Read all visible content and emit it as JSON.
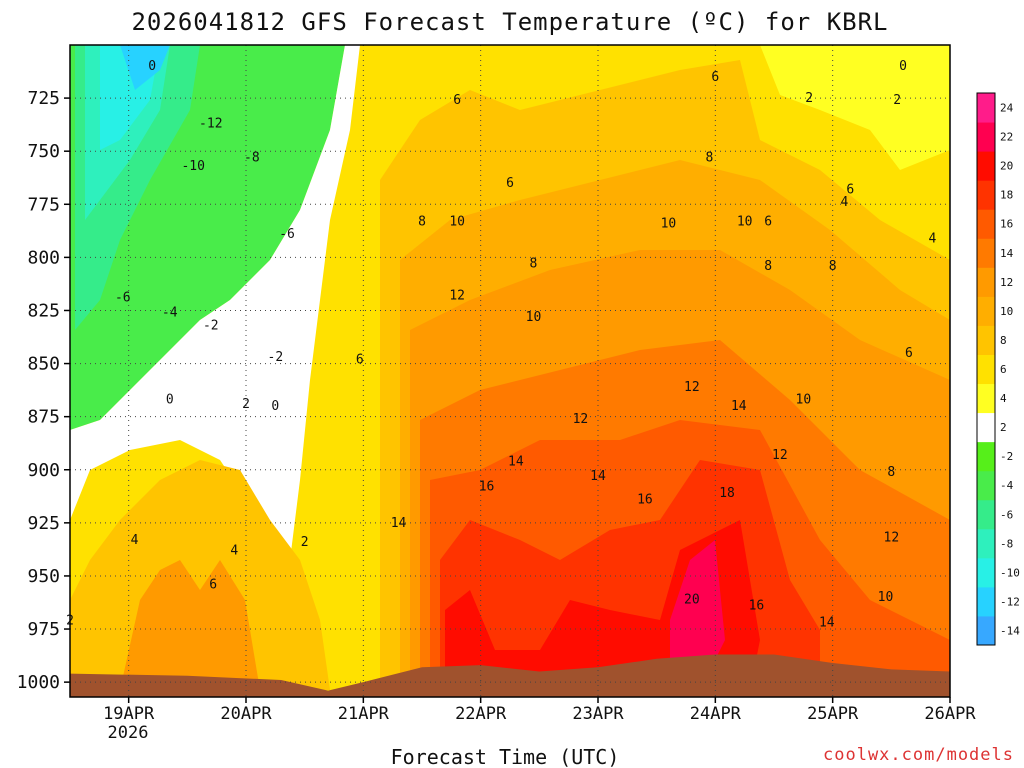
{
  "chart_data": {
    "type": "heatmap",
    "title": "2026041812 GFS Forecast Temperature (ºC) for KBRL",
    "xlabel": "Forecast Time (UTC)",
    "ylabel": "",
    "credit": "coolwx.com/models",
    "y_axis": {
      "inverted": true,
      "unit": "hPa",
      "ticks": [
        "725",
        "750",
        "775",
        "800",
        "825",
        "850",
        "875",
        "900",
        "925",
        "950",
        "975",
        "1000"
      ],
      "range": [
        700,
        1007
      ]
    },
    "x_axis": {
      "ticks": [
        "19APR",
        "20APR",
        "21APR",
        "22APR",
        "23APR",
        "24APR",
        "25APR",
        "26APR"
      ],
      "year_label": "2026",
      "range_days": [
        -0.5,
        7.0
      ]
    },
    "colorbar": {
      "levels": [
        "-14",
        "-12",
        "-10",
        "-8",
        "-6",
        "-4",
        "-2",
        "2",
        "4",
        "6",
        "8",
        "10",
        "12",
        "14",
        "16",
        "18",
        "20",
        "22",
        "24"
      ],
      "colors": [
        "#37a8ff",
        "#27d2ff",
        "#28f0e6",
        "#2ef0bd",
        "#35ec8a",
        "#49ec4a",
        "#56ef1a",
        "#ffffff",
        "#ffff22",
        "#ffe100",
        "#ffc400",
        "#ffae00",
        "#ff9a00",
        "#ff7a00",
        "#ff5a00",
        "#ff3300",
        "#ff0c00",
        "#ff0050",
        "#ff1c8a"
      ]
    },
    "contour_labels": [
      {
        "t": 0.2,
        "p": 710,
        "v": "0"
      },
      {
        "t": 0.7,
        "p": 737,
        "v": "-12"
      },
      {
        "t": 0.55,
        "p": 757,
        "v": "-10"
      },
      {
        "t": 1.05,
        "p": 753,
        "v": "-8"
      },
      {
        "t": 1.35,
        "p": 789,
        "v": "-6"
      },
      {
        "t": -0.05,
        "p": 819,
        "v": "-6"
      },
      {
        "t": 0.35,
        "p": 826,
        "v": "-4"
      },
      {
        "t": 0.7,
        "p": 832,
        "v": "-2"
      },
      {
        "t": 1.25,
        "p": 847,
        "v": "-2"
      },
      {
        "t": 0.35,
        "p": 867,
        "v": "0"
      },
      {
        "t": 1.25,
        "p": 870,
        "v": "0"
      },
      {
        "t": 1.0,
        "p": 869,
        "v": "2"
      },
      {
        "t": -0.5,
        "p": 971,
        "v": "2"
      },
      {
        "t": 0.05,
        "p": 933,
        "v": "4"
      },
      {
        "t": 0.9,
        "p": 938,
        "v": "4"
      },
      {
        "t": 0.72,
        "p": 954,
        "v": "6"
      },
      {
        "t": 1.5,
        "p": 934,
        "v": "2"
      },
      {
        "t": 1.97,
        "p": 848,
        "v": "6"
      },
      {
        "t": 2.8,
        "p": 726,
        "v": "6"
      },
      {
        "t": 3.25,
        "p": 765,
        "v": "6"
      },
      {
        "t": 2.5,
        "p": 783,
        "v": "8"
      },
      {
        "t": 2.8,
        "p": 783,
        "v": "10"
      },
      {
        "t": 2.3,
        "p": 925,
        "v": "14"
      },
      {
        "t": 2.8,
        "p": 818,
        "v": "12"
      },
      {
        "t": 3.45,
        "p": 803,
        "v": "8"
      },
      {
        "t": 3.45,
        "p": 828,
        "v": "10"
      },
      {
        "t": 3.3,
        "p": 896,
        "v": "14"
      },
      {
        "t": 3.05,
        "p": 908,
        "v": "16"
      },
      {
        "t": 3.85,
        "p": 876,
        "v": "12"
      },
      {
        "t": 4.0,
        "p": 903,
        "v": "14"
      },
      {
        "t": 4.6,
        "p": 784,
        "v": "10"
      },
      {
        "t": 4.8,
        "p": 861,
        "v": "12"
      },
      {
        "t": 5.0,
        "p": 715,
        "v": "6"
      },
      {
        "t": 4.95,
        "p": 753,
        "v": "8"
      },
      {
        "t": 5.25,
        "p": 783,
        "v": "10"
      },
      {
        "t": 5.45,
        "p": 783,
        "v": "6"
      },
      {
        "t": 5.45,
        "p": 804,
        "v": "8"
      },
      {
        "t": 5.2,
        "p": 870,
        "v": "14"
      },
      {
        "t": 4.4,
        "p": 914,
        "v": "16"
      },
      {
        "t": 5.1,
        "p": 911,
        "v": "18"
      },
      {
        "t": 4.8,
        "p": 961,
        "v": "20"
      },
      {
        "t": 5.35,
        "p": 964,
        "v": "16"
      },
      {
        "t": 5.55,
        "p": 893,
        "v": "12"
      },
      {
        "t": 5.75,
        "p": 867,
        "v": "10"
      },
      {
        "t": 5.95,
        "p": 972,
        "v": "14"
      },
      {
        "t": 6.0,
        "p": 804,
        "v": "8"
      },
      {
        "t": 6.1,
        "p": 774,
        "v": "4"
      },
      {
        "t": 5.8,
        "p": 725,
        "v": "2"
      },
      {
        "t": 6.15,
        "p": 768,
        "v": "6"
      },
      {
        "t": 6.5,
        "p": 932,
        "v": "12"
      },
      {
        "t": 6.45,
        "p": 960,
        "v": "10"
      },
      {
        "t": 6.5,
        "p": 901,
        "v": "8"
      },
      {
        "t": 6.65,
        "p": 845,
        "v": "6"
      },
      {
        "t": 6.85,
        "p": 791,
        "v": "4"
      },
      {
        "t": 6.55,
        "p": 726,
        "v": "2"
      },
      {
        "t": 6.6,
        "p": 710,
        "v": "0"
      }
    ]
  }
}
